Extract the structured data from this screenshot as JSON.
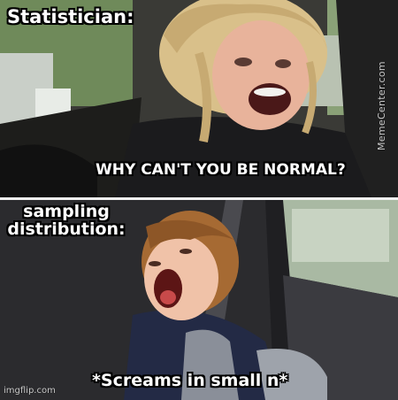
{
  "meme": {
    "top_label": "Statistician:",
    "top_text": "WHY CAN'T YOU BE NORMAL?",
    "bottom_label": "sampling\ndistribution:",
    "bottom_text": "*Screams in small n*"
  },
  "watermarks": {
    "side": "MemeCenter.com",
    "corner": "imgflip.com"
  },
  "colors": {
    "caption_text": "#ffffff",
    "caption_outline": "#000000",
    "divider": "#f2f2f2"
  }
}
